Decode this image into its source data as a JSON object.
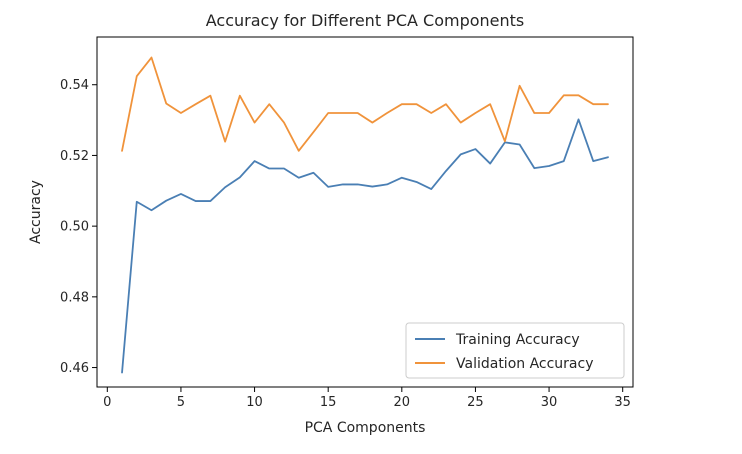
{
  "chart_data": {
    "type": "line",
    "title": "Accuracy for Different PCA Components",
    "xlabel": "PCA Components",
    "ylabel": "Accuracy",
    "xlim": [
      -0.7,
      35.7
    ],
    "ylim": [
      0.4545,
      0.5535
    ],
    "xticks": [
      0,
      5,
      10,
      15,
      20,
      25,
      30,
      35
    ],
    "yticks": [
      0.46,
      0.48,
      0.5,
      0.52,
      0.54
    ],
    "ytick_labels": [
      "0.46",
      "0.48",
      "0.50",
      "0.52",
      "0.54"
    ],
    "grid": false,
    "legend_position": "lower-right",
    "x": [
      1,
      2,
      3,
      4,
      5,
      6,
      7,
      8,
      9,
      10,
      11,
      12,
      13,
      14,
      15,
      16,
      17,
      18,
      19,
      20,
      21,
      22,
      23,
      24,
      25,
      26,
      27,
      28,
      29,
      30,
      31,
      32,
      33,
      34
    ],
    "series": [
      {
        "name": "Training Accuracy",
        "color": "#4a7fb4",
        "values": [
          0.4586,
          0.5069,
          0.5045,
          0.5072,
          0.5091,
          0.5071,
          0.5071,
          0.511,
          0.5138,
          0.5184,
          0.5163,
          0.5163,
          0.5137,
          0.5151,
          0.5111,
          0.5118,
          0.5118,
          0.5112,
          0.5118,
          0.5137,
          0.5125,
          0.5105,
          0.5156,
          0.5203,
          0.5218,
          0.5177,
          0.5237,
          0.5231,
          0.5164,
          0.517,
          0.5184,
          0.5302,
          0.5184,
          0.5195
        ]
      },
      {
        "name": "Validation Accuracy",
        "color": "#f0933b",
        "values": [
          0.5213,
          0.5424,
          0.5477,
          0.5347,
          0.532,
          0.5345,
          0.5369,
          0.5239,
          0.5369,
          0.5293,
          0.5345,
          0.5293,
          0.5213,
          0.5266,
          0.532,
          0.532,
          0.532,
          0.5293,
          0.532,
          0.5345,
          0.5345,
          0.532,
          0.5345,
          0.5293,
          0.532,
          0.5345,
          0.524,
          0.5397,
          0.532,
          0.532,
          0.537,
          0.537,
          0.5345,
          0.5345
        ]
      }
    ]
  }
}
